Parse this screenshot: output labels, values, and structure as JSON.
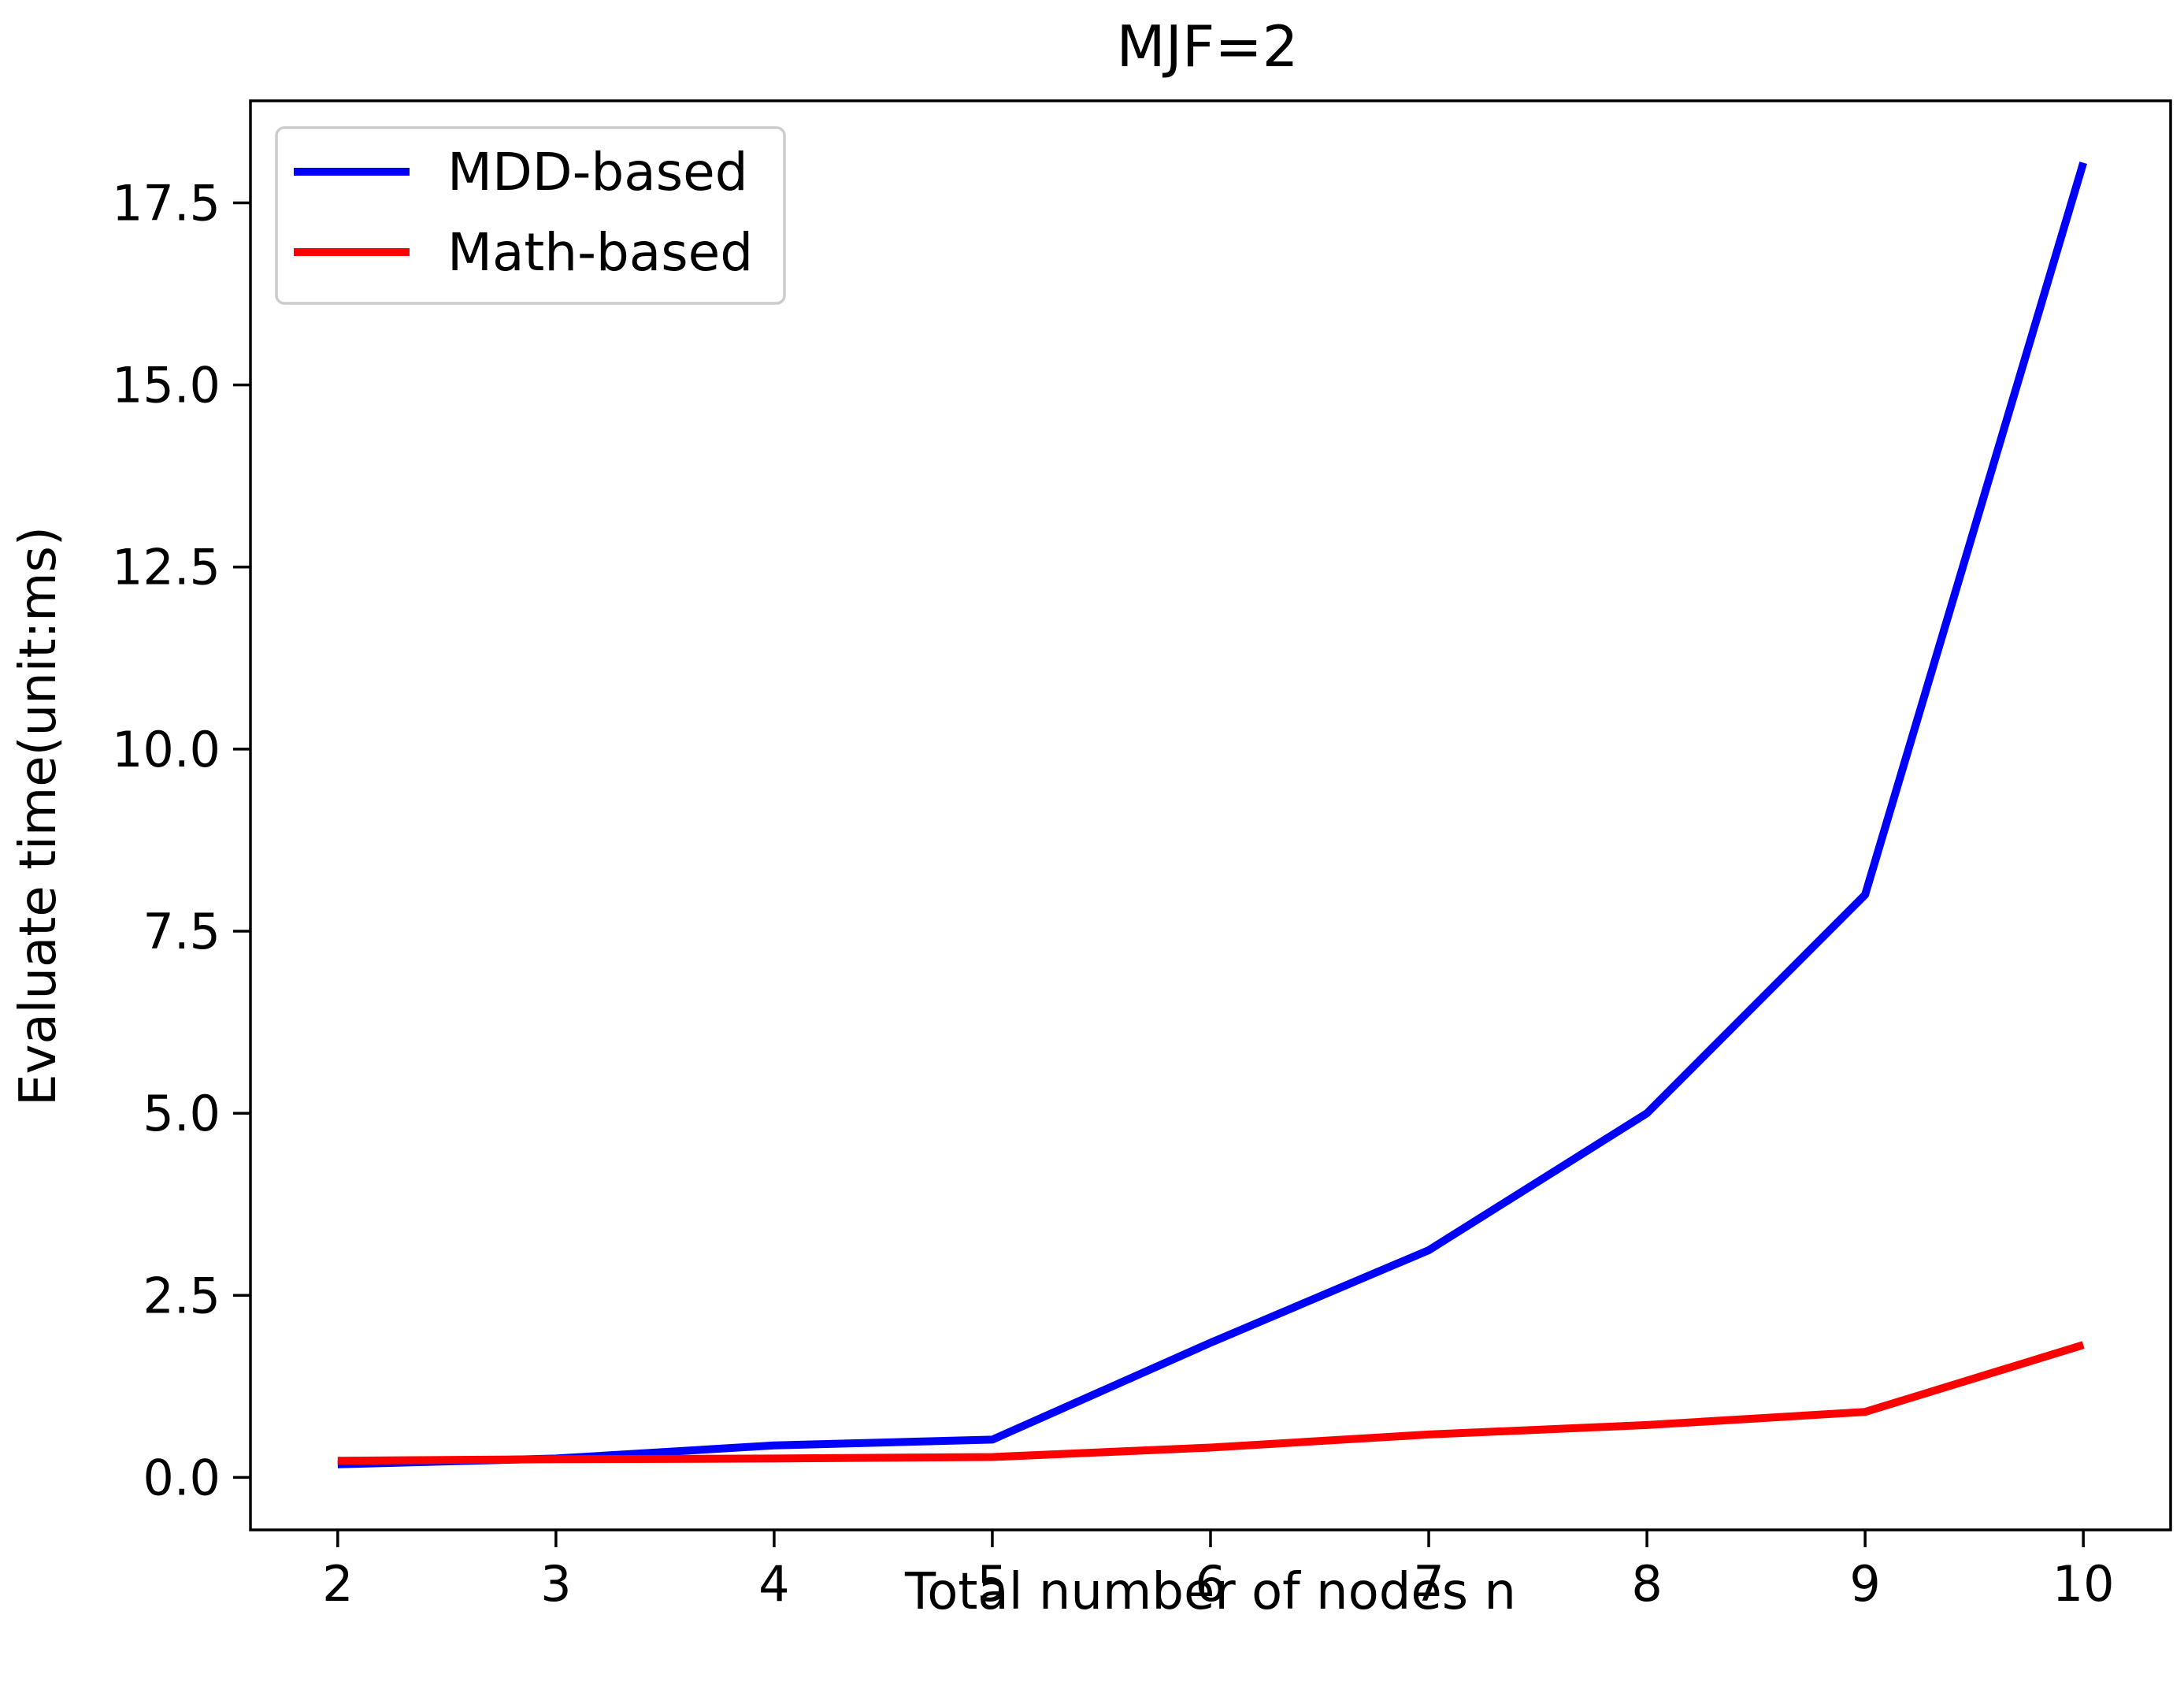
{
  "chart_data": {
    "type": "line",
    "title": "MJF=2",
    "xlabel": "Total number of nodes n",
    "ylabel": "Evaluate time(unit:ms)",
    "x": [
      2,
      3,
      4,
      5,
      6,
      7,
      8,
      9,
      10
    ],
    "xticks": [
      2,
      3,
      4,
      5,
      6,
      7,
      8,
      9,
      10
    ],
    "xtick_labels": [
      "2",
      "3",
      "4",
      "5",
      "6",
      "7",
      "8",
      "9",
      "10"
    ],
    "xlim": [
      1.6,
      10.4
    ],
    "yticks": [
      0.0,
      2.5,
      5.0,
      7.5,
      10.0,
      12.5,
      15.0,
      17.5
    ],
    "ytick_labels": [
      "0.0",
      "2.5",
      "5.0",
      "7.5",
      "10.0",
      "12.5",
      "15.0",
      "17.5"
    ],
    "ylim": [
      -0.72,
      18.9
    ],
    "grid": false,
    "legend_position": "top-left",
    "series": [
      {
        "name": "MDD-based",
        "color": "#0000ff",
        "values": [
          0.18,
          0.26,
          0.44,
          0.52,
          1.85,
          3.12,
          5.0,
          8.0,
          18.05
        ]
      },
      {
        "name": "Math-based",
        "color": "#ff0000",
        "values": [
          0.23,
          0.25,
          0.26,
          0.28,
          0.41,
          0.59,
          0.72,
          0.9,
          1.82
        ]
      }
    ]
  }
}
